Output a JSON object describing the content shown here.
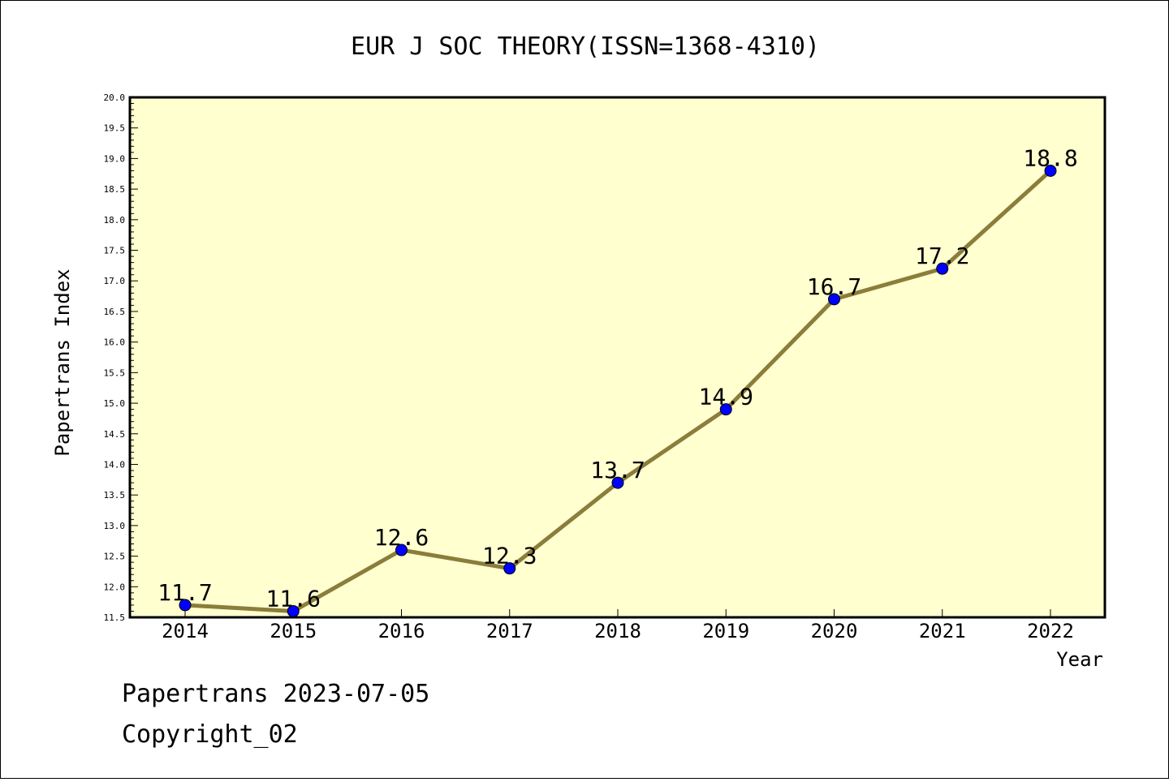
{
  "chart_data": {
    "type": "line",
    "title": "EUR J SOC THEORY(ISSN=1368-4310)",
    "xlabel": "Year",
    "ylabel": "Papertrans Index",
    "categories": [
      "2014",
      "2015",
      "2016",
      "2017",
      "2018",
      "2019",
      "2020",
      "2021",
      "2022"
    ],
    "series": [
      {
        "values": [
          11.7,
          11.6,
          12.6,
          12.3,
          13.7,
          14.9,
          16.7,
          17.2,
          18.8
        ]
      }
    ],
    "data_labels": [
      "11.7",
      "11.6",
      "12.6",
      "12.3",
      "13.7",
      "14.9",
      "16.7",
      "17.2",
      "18.8"
    ],
    "ylim": [
      11.5,
      20.0
    ],
    "yticks": [
      "11.5",
      "12.0",
      "12.5",
      "13.0",
      "13.5",
      "14.0",
      "14.5",
      "15.0",
      "15.5",
      "16.0",
      "16.5",
      "17.0",
      "17.5",
      "18.0",
      "18.5",
      "19.0",
      "19.5",
      "20.0"
    ],
    "grid": false,
    "colors": {
      "plot_bg": "#ffffd0",
      "line": "#8b7d3a",
      "marker": "#0000ff"
    }
  },
  "footer": {
    "line1": "Papertrans 2023-07-05",
    "line2": "Copyright_02"
  }
}
